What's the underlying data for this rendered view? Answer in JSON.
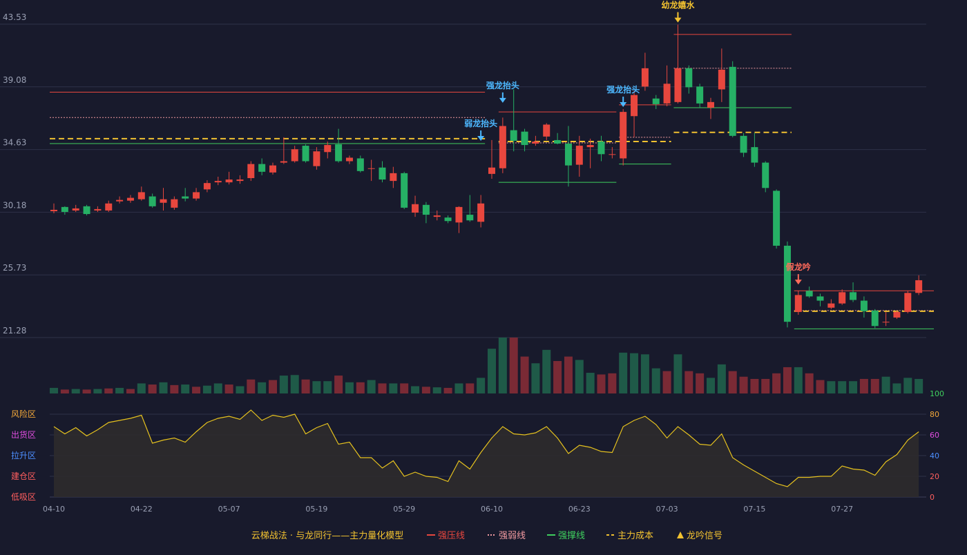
{
  "colors": {
    "background": "#181a2c",
    "grid": "#2e3148",
    "up": "#e8473e",
    "down": "#26b065",
    "vol_up": "#7a2a35",
    "vol_down": "#1f5a48",
    "pressure": "#e8473e",
    "weak": "#f19aa0",
    "support": "#3fcf5e",
    "cost": "#f2c230",
    "signal_strong": "#4db8ff",
    "signal_young": "#f2c230",
    "signal_fake": "#ff6a5a",
    "osc_line": "#e6c21e",
    "osc_fill": "#2e2b2c"
  },
  "legend": {
    "title": "云梯战法 · 与龙同行——主力量化模型",
    "items": [
      {
        "label": "强压线",
        "color": "#e8473e",
        "style": "solid"
      },
      {
        "label": "强弱线",
        "color": "#f19aa0",
        "style": "dotted"
      },
      {
        "label": "强撑线",
        "color": "#3fcf5e",
        "style": "solid"
      },
      {
        "label": "主力成本",
        "color": "#f2c230",
        "style": "dashed"
      },
      {
        "label": "龙吟信号",
        "color": "#f2c230",
        "style": "triangle"
      }
    ]
  },
  "chart_data": {
    "type": "candlestick",
    "price_axis": {
      "ticks": [
        "43.53",
        "39.08",
        "34.63",
        "30.18",
        "25.73",
        "21.28"
      ],
      "min": 21.28,
      "max": 43.53
    },
    "x_ticks": [
      {
        "index": 0,
        "label": "04-10"
      },
      {
        "index": 8,
        "label": "04-22"
      },
      {
        "index": 16,
        "label": "05-07"
      },
      {
        "index": 24,
        "label": "05-19"
      },
      {
        "index": 32,
        "label": "05-29"
      },
      {
        "index": 40,
        "label": "06-10"
      },
      {
        "index": 48,
        "label": "06-23"
      },
      {
        "index": 56,
        "label": "07-03"
      },
      {
        "index": 64,
        "label": "07-15"
      },
      {
        "index": 72,
        "label": "07-27"
      }
    ],
    "candles": [
      [
        30.25,
        30.35,
        30.8,
        30.1
      ],
      [
        30.55,
        30.2,
        30.6,
        30.0
      ],
      [
        30.3,
        30.45,
        30.7,
        30.2
      ],
      [
        30.6,
        30.05,
        30.7,
        29.95
      ],
      [
        30.3,
        30.4,
        30.6,
        30.2
      ],
      [
        30.3,
        30.8,
        31.0,
        30.2
      ],
      [
        30.95,
        31.05,
        31.3,
        30.8
      ],
      [
        31.0,
        31.2,
        31.4,
        30.85
      ],
      [
        31.1,
        31.6,
        32.0,
        31.0
      ],
      [
        31.3,
        30.6,
        31.5,
        30.5
      ],
      [
        30.85,
        31.1,
        31.9,
        30.3
      ],
      [
        30.5,
        31.1,
        31.3,
        30.35
      ],
      [
        31.3,
        31.15,
        31.9,
        30.95
      ],
      [
        31.15,
        31.6,
        31.9,
        31.0
      ],
      [
        31.8,
        32.25,
        32.45,
        31.6
      ],
      [
        32.3,
        32.4,
        32.7,
        32.1
      ],
      [
        32.3,
        32.5,
        33.05,
        32.15
      ],
      [
        32.4,
        32.5,
        32.8,
        32.2
      ],
      [
        32.6,
        33.6,
        33.8,
        32.4
      ],
      [
        33.6,
        33.05,
        34.0,
        32.8
      ],
      [
        33.0,
        33.5,
        33.7,
        32.85
      ],
      [
        33.7,
        33.8,
        35.5,
        33.6
      ],
      [
        33.8,
        34.65,
        34.9,
        33.7
      ],
      [
        34.9,
        33.8,
        35.0,
        33.7
      ],
      [
        33.45,
        34.5,
        34.8,
        33.2
      ],
      [
        34.45,
        34.95,
        35.2,
        34.0
      ],
      [
        35.0,
        33.8,
        36.1,
        33.7
      ],
      [
        33.8,
        34.05,
        34.2,
        33.6
      ],
      [
        34.0,
        33.1,
        34.2,
        33.0
      ],
      [
        33.3,
        33.3,
        33.9,
        32.4
      ],
      [
        33.35,
        32.5,
        33.8,
        32.3
      ],
      [
        32.4,
        32.95,
        33.4,
        31.9
      ],
      [
        32.95,
        30.5,
        33.05,
        30.4
      ],
      [
        30.15,
        30.75,
        31.35,
        29.85
      ],
      [
        30.7,
        30.0,
        30.9,
        29.4
      ],
      [
        29.85,
        29.95,
        30.3,
        29.6
      ],
      [
        29.8,
        29.55,
        29.95,
        29.4
      ],
      [
        29.45,
        30.55,
        30.6,
        28.7
      ],
      [
        30.0,
        29.6,
        31.4,
        29.5
      ],
      [
        29.5,
        30.8,
        31.4,
        29.1
      ],
      [
        32.9,
        33.35,
        35.3,
        32.55
      ],
      [
        33.3,
        36.3,
        36.9,
        32.95
      ],
      [
        36.0,
        35.25,
        38.9,
        34.5
      ],
      [
        35.9,
        34.95,
        36.1,
        34.5
      ],
      [
        35.05,
        35.2,
        35.6,
        34.9
      ],
      [
        35.55,
        36.4,
        36.5,
        35.3
      ],
      [
        35.3,
        35.05,
        35.8,
        35.0
      ],
      [
        35.05,
        33.5,
        36.3,
        32.0
      ],
      [
        33.55,
        34.9,
        35.6,
        32.7
      ],
      [
        34.8,
        34.95,
        35.4,
        33.3
      ],
      [
        35.2,
        34.3,
        35.6,
        33.8
      ],
      [
        34.3,
        34.3,
        34.8,
        34.0
      ],
      [
        34.0,
        37.3,
        37.5,
        33.5
      ],
      [
        37.0,
        38.5,
        38.8,
        35.5
      ],
      [
        39.1,
        40.4,
        41.5,
        38.8
      ],
      [
        38.25,
        37.85,
        38.5,
        37.5
      ],
      [
        37.9,
        39.3,
        40.6,
        37.7
      ],
      [
        38.0,
        40.4,
        43.5,
        37.9
      ],
      [
        40.4,
        39.05,
        40.6,
        38.6
      ],
      [
        39.1,
        37.9,
        39.3,
        37.6
      ],
      [
        37.6,
        38.0,
        38.3,
        36.8
      ],
      [
        38.9,
        40.3,
        41.8,
        38.0
      ],
      [
        40.5,
        35.6,
        40.9,
        35.5
      ],
      [
        35.6,
        34.4,
        35.8,
        34.1
      ],
      [
        34.8,
        33.7,
        35.8,
        33.4
      ],
      [
        33.7,
        31.9,
        33.8,
        31.6
      ],
      [
        31.7,
        27.8,
        31.8,
        27.6
      ],
      [
        27.8,
        22.4,
        28.1,
        22.0
      ],
      [
        23.1,
        24.3,
        24.6,
        22.9
      ],
      [
        24.6,
        24.2,
        24.9,
        24.1
      ],
      [
        24.2,
        23.9,
        24.4,
        23.5
      ],
      [
        23.4,
        23.7,
        24.0,
        23.3
      ],
      [
        23.7,
        24.5,
        24.7,
        23.6
      ],
      [
        24.5,
        23.95,
        25.2,
        23.8
      ],
      [
        23.9,
        23.15,
        24.2,
        22.7
      ],
      [
        23.2,
        22.1,
        23.3,
        21.95
      ],
      [
        22.4,
        22.4,
        23.1,
        22.1
      ],
      [
        22.7,
        23.1,
        23.2,
        22.6
      ],
      [
        23.1,
        24.45,
        24.6,
        23.0
      ],
      [
        24.45,
        25.35,
        25.7,
        24.3
      ]
    ],
    "volume": [
      [
        0,
        10,
        "d"
      ],
      [
        1,
        7,
        "u"
      ],
      [
        2,
        8,
        "d"
      ],
      [
        3,
        7,
        "u"
      ],
      [
        4,
        8,
        "d"
      ],
      [
        5,
        9,
        "u"
      ],
      [
        6,
        10,
        "d"
      ],
      [
        7,
        8,
        "u"
      ],
      [
        8,
        18,
        "d"
      ],
      [
        9,
        16,
        "u"
      ],
      [
        10,
        20,
        "d"
      ],
      [
        11,
        15,
        "u"
      ],
      [
        12,
        16,
        "d"
      ],
      [
        13,
        12,
        "u"
      ],
      [
        14,
        14,
        "d"
      ],
      [
        15,
        18,
        "d"
      ],
      [
        16,
        16,
        "u"
      ],
      [
        17,
        13,
        "d"
      ],
      [
        18,
        25,
        "u"
      ],
      [
        19,
        20,
        "d"
      ],
      [
        20,
        24,
        "u"
      ],
      [
        21,
        32,
        "d"
      ],
      [
        22,
        33,
        "d"
      ],
      [
        23,
        25,
        "u"
      ],
      [
        24,
        22,
        "d"
      ],
      [
        25,
        22,
        "d"
      ],
      [
        26,
        32,
        "u"
      ],
      [
        27,
        20,
        "d"
      ],
      [
        28,
        20,
        "u"
      ],
      [
        29,
        24,
        "d"
      ],
      [
        30,
        18,
        "u"
      ],
      [
        31,
        18,
        "d"
      ],
      [
        32,
        18,
        "u"
      ],
      [
        33,
        13,
        "d"
      ],
      [
        34,
        12,
        "u"
      ],
      [
        35,
        11,
        "d"
      ],
      [
        36,
        10,
        "u"
      ],
      [
        37,
        18,
        "d"
      ],
      [
        38,
        18,
        "u"
      ],
      [
        39,
        28,
        "d"
      ],
      [
        40,
        80,
        "d"
      ],
      [
        41,
        100,
        "d"
      ],
      [
        42,
        100,
        "u"
      ],
      [
        43,
        66,
        "u"
      ],
      [
        44,
        54,
        "d"
      ],
      [
        45,
        78,
        "d"
      ],
      [
        46,
        58,
        "u"
      ],
      [
        47,
        66,
        "u"
      ],
      [
        48,
        60,
        "d"
      ],
      [
        49,
        37,
        "d"
      ],
      [
        50,
        34,
        "u"
      ],
      [
        51,
        36,
        "u"
      ],
      [
        52,
        73,
        "d"
      ],
      [
        53,
        72,
        "d"
      ],
      [
        54,
        70,
        "d"
      ],
      [
        55,
        45,
        "d"
      ],
      [
        56,
        40,
        "u"
      ],
      [
        57,
        70,
        "d"
      ],
      [
        58,
        40,
        "u"
      ],
      [
        59,
        36,
        "u"
      ],
      [
        60,
        28,
        "d"
      ],
      [
        61,
        52,
        "d"
      ],
      [
        62,
        40,
        "u"
      ],
      [
        63,
        30,
        "u"
      ],
      [
        64,
        26,
        "u"
      ],
      [
        65,
        26,
        "u"
      ],
      [
        66,
        36,
        "u"
      ],
      [
        67,
        47,
        "u"
      ],
      [
        68,
        47,
        "d"
      ],
      [
        69,
        36,
        "u"
      ],
      [
        70,
        24,
        "u"
      ],
      [
        71,
        22,
        "d"
      ],
      [
        72,
        22,
        "d"
      ],
      [
        73,
        22,
        "d"
      ],
      [
        74,
        26,
        "u"
      ],
      [
        75,
        26,
        "u"
      ],
      [
        76,
        30,
        "d"
      ],
      [
        77,
        18,
        "d"
      ],
      [
        78,
        28,
        "d"
      ],
      [
        79,
        26,
        "d"
      ]
    ],
    "oscillator": {
      "right_ticks": [
        "100",
        "80",
        "60",
        "40",
        "20",
        "0"
      ],
      "zone_labels": [
        {
          "label": "风险区",
          "color": "#f2a83a",
          "level": 80
        },
        {
          "label": "出货区",
          "color": "#e04de0",
          "level": 60
        },
        {
          "label": "拉升区",
          "color": "#4d8fff",
          "level": 40
        },
        {
          "label": "建仓区",
          "color": "#ff5e5e",
          "level": 20
        },
        {
          "label": "低吸区",
          "color": "#ff5e5e",
          "level": 0
        }
      ],
      "values": [
        68,
        61,
        67,
        59,
        65,
        72,
        74,
        76,
        79,
        52,
        55,
        57,
        53,
        63,
        72,
        76,
        78,
        75,
        84,
        74,
        79,
        77,
        80,
        61,
        67,
        71,
        51,
        53,
        38,
        38,
        28,
        35,
        20,
        24,
        20,
        19,
        15,
        35,
        27,
        43,
        57,
        68,
        61,
        60,
        62,
        68,
        57,
        42,
        50,
        48,
        44,
        43,
        68,
        74,
        78,
        70,
        57,
        68,
        60,
        51,
        50,
        61,
        38,
        31,
        25,
        19,
        13,
        10,
        19,
        19,
        20,
        20,
        30,
        27,
        26,
        21,
        34,
        41,
        55,
        63
      ]
    },
    "levels": [
      {
        "type": "pressure",
        "from": 0,
        "to": 39,
        "value": 38.7
      },
      {
        "type": "weak",
        "from": 0,
        "to": 39,
        "value": 36.9
      },
      {
        "type": "cost",
        "from": 0,
        "to": 39,
        "value": 35.4
      },
      {
        "type": "support",
        "from": 0,
        "to": 39,
        "value": 35.05
      },
      {
        "type": "pressure",
        "from": 41,
        "to": 51,
        "value": 37.3
      },
      {
        "type": "weak",
        "from": 41,
        "to": 51,
        "value": 35.1
      },
      {
        "type": "cost",
        "from": 41,
        "to": 56,
        "value": 35.2
      },
      {
        "type": "support",
        "from": 41,
        "to": 51,
        "value": 32.3
      },
      {
        "type": "pressure",
        "from": 52,
        "to": 56,
        "value": 37.8
      },
      {
        "type": "weak",
        "from": 52,
        "to": 56,
        "value": 35.5
      },
      {
        "type": "support",
        "from": 52,
        "to": 56,
        "value": 33.6
      },
      {
        "type": "pressure",
        "from": 57,
        "to": 67,
        "value": 42.8
      },
      {
        "type": "weak",
        "from": 57,
        "to": 67,
        "value": 40.4
      },
      {
        "type": "cost",
        "from": 57,
        "to": 67,
        "value": 35.85
      },
      {
        "type": "support",
        "from": 57,
        "to": 67,
        "value": 37.6
      },
      {
        "type": "pressure",
        "from": 68,
        "to": 80,
        "value": 24.6
      },
      {
        "type": "weak",
        "from": 68,
        "to": 80,
        "value": 23.2
      },
      {
        "type": "cost",
        "from": 68,
        "to": 80,
        "value": 23.15
      },
      {
        "type": "support",
        "from": 68,
        "to": 80,
        "value": 21.9
      }
    ],
    "signals": [
      {
        "index": 39,
        "label": "弱龙抬头",
        "kind": "strong",
        "price": 35.2
      },
      {
        "index": 41,
        "label": "强龙抬头",
        "kind": "strong",
        "price": 37.9
      },
      {
        "index": 52,
        "label": "强龙抬头",
        "kind": "strong",
        "price": 37.6
      },
      {
        "index": 57,
        "label": "幼龙嬉水",
        "kind": "young",
        "price": 43.6
      },
      {
        "index": 68,
        "label": "假龙吟",
        "kind": "fake",
        "price": 25.0
      }
    ]
  }
}
